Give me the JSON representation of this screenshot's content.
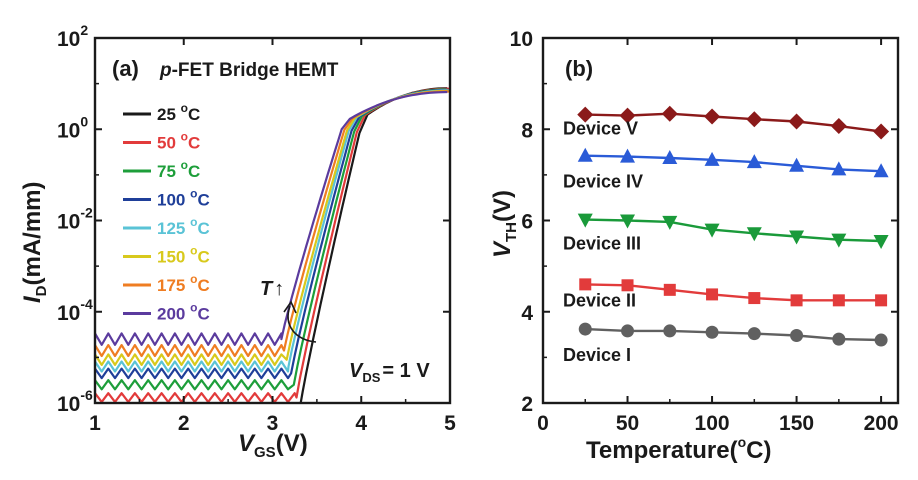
{
  "chart_data": [
    {
      "type": "line",
      "panel_label": "(a)",
      "title_italic": "p",
      "title_rest": "-FET Bridge HEMT",
      "xlabel_main": "V",
      "xlabel_sub": "GS",
      "xlabel_unit": "(V)",
      "ylabel_main": "I",
      "ylabel_sub": "D",
      "ylabel_unit": "(mA/mm)",
      "xlim": [
        1,
        5
      ],
      "ylim_log10": [
        -6,
        2
      ],
      "y_scale": "log",
      "xticks": [
        "1",
        "2",
        "3",
        "4",
        "5"
      ],
      "yticks": [
        {
          "base": "10",
          "exp": "-6",
          "value": -6
        },
        {
          "base": "10",
          "exp": "-4",
          "value": -4
        },
        {
          "base": "10",
          "exp": "-2",
          "value": -2
        },
        {
          "base": "10",
          "exp": "0",
          "value": 0
        },
        {
          "base": "10",
          "exp": "2",
          "value": 2
        }
      ],
      "legend_unit": "°C",
      "series": [
        {
          "name": "25",
          "color": "#1a1a1a",
          "off_log10": -6.2,
          "vth": 3.3
        },
        {
          "name": "50",
          "color": "#e23b3b",
          "off_log10": -5.88,
          "vth": 3.27
        },
        {
          "name": "75",
          "color": "#1d9e3a",
          "off_log10": -5.6,
          "vth": 3.24
        },
        {
          "name": "100",
          "color": "#1f3f99",
          "off_log10": -5.35,
          "vth": 3.21
        },
        {
          "name": "125",
          "color": "#5ac3d6",
          "off_log10": -5.2,
          "vth": 3.18
        },
        {
          "name": "150",
          "color": "#d8c91c",
          "off_log10": -5.05,
          "vth": 3.16
        },
        {
          "name": "175",
          "color": "#ef7d22",
          "off_log10": -4.85,
          "vth": 3.13
        },
        {
          "name": "200",
          "color": "#5b3b9e",
          "off_log10": -4.6,
          "vth": 3.1
        }
      ],
      "on_current_at_5V_log10": 0.9,
      "annotations": {
        "trend_italic": "T",
        "trend_arrow": "↑",
        "vds_main": "V",
        "vds_sub": "DS",
        "vds_rest": "= 1 V"
      }
    },
    {
      "type": "line",
      "panel_label": "(b)",
      "xlabel_main": "Temperature(",
      "xlabel_deg": "o",
      "xlabel_rest": "C)",
      "ylabel_main": "V",
      "ylabel_sub": "TH",
      "ylabel_unit": "(V)",
      "xlim": [
        0,
        210
      ],
      "ylim": [
        2,
        10
      ],
      "xticks": [
        "0",
        "50",
        "100",
        "150",
        "200"
      ],
      "yticks": [
        "2",
        "4",
        "6",
        "8",
        "10"
      ],
      "x": [
        25,
        50,
        75,
        100,
        125,
        150,
        175,
        200
      ],
      "series": [
        {
          "name": "Device V",
          "color": "#8b1a1a",
          "marker": "diamond",
          "values": [
            8.32,
            8.3,
            8.34,
            8.28,
            8.22,
            8.17,
            8.07,
            7.95
          ]
        },
        {
          "name": "Device IV",
          "color": "#2a5bd7",
          "marker": "triangle-up",
          "values": [
            7.42,
            7.4,
            7.37,
            7.33,
            7.28,
            7.2,
            7.12,
            7.08
          ]
        },
        {
          "name": "Device III",
          "color": "#1a9a3a",
          "marker": "triangle-down",
          "values": [
            6.02,
            6.0,
            5.97,
            5.8,
            5.72,
            5.65,
            5.58,
            5.55
          ]
        },
        {
          "name": "Device II",
          "color": "#e23b3b",
          "marker": "square",
          "values": [
            4.6,
            4.58,
            4.48,
            4.38,
            4.3,
            4.25,
            4.25,
            4.25
          ]
        },
        {
          "name": "Device I",
          "color": "#606060",
          "marker": "circle",
          "values": [
            3.62,
            3.58,
            3.58,
            3.55,
            3.52,
            3.48,
            3.4,
            3.38
          ]
        }
      ]
    }
  ]
}
